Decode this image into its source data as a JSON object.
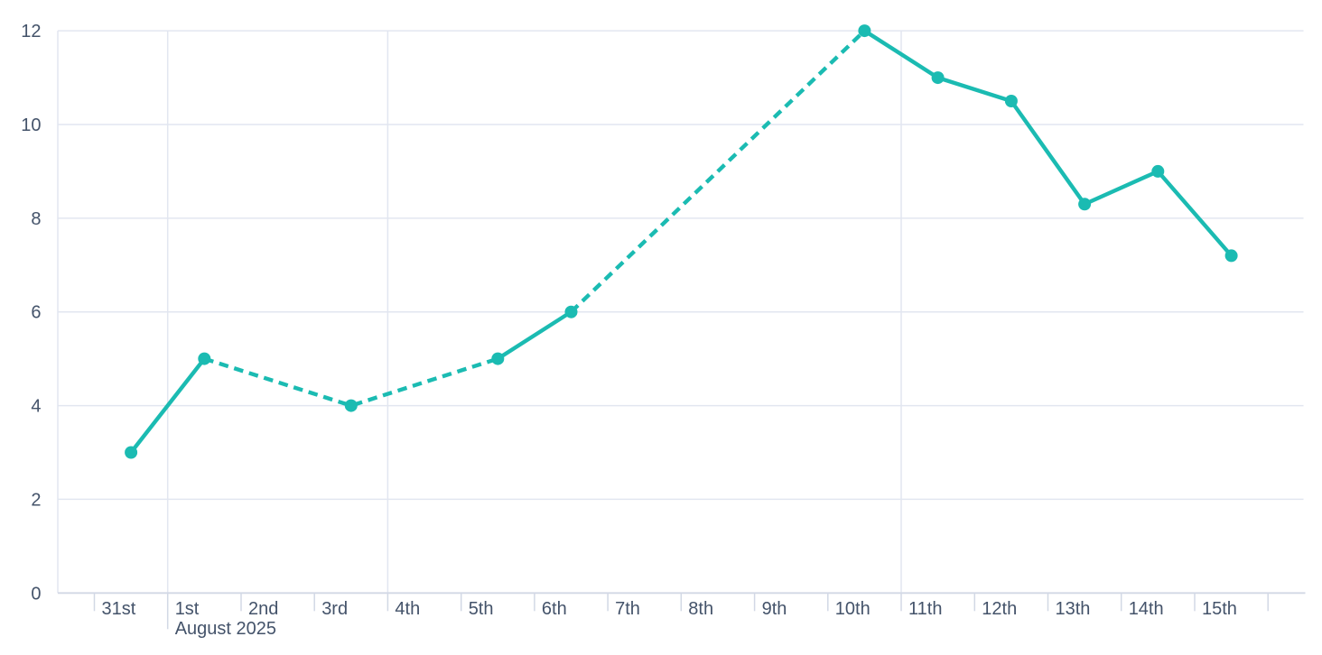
{
  "chart_data": {
    "type": "line",
    "title": "",
    "xlabel": "",
    "ylabel": "",
    "legend": null,
    "categories": [
      "31st",
      "1st",
      "2nd",
      "3rd",
      "4th",
      "5th",
      "6th",
      "7th",
      "8th",
      "9th",
      "10th",
      "11th",
      "12th",
      "13th",
      "14th",
      "15th"
    ],
    "x_secondary_label": "August 2025",
    "x_secondary_label_under": "1st",
    "values": [
      3,
      5,
      null,
      4,
      null,
      5,
      6,
      null,
      null,
      null,
      12,
      11,
      10.5,
      8.3,
      9,
      7.2
    ],
    "missing_data_style": "dashed-bridge-across-null-days",
    "yticks": [
      0,
      2,
      4,
      6,
      8,
      10,
      12
    ],
    "ylim": [
      0,
      12
    ],
    "grid": {
      "horizontal": true,
      "vertical_gridlines_before": [
        "1st",
        "4th",
        "11th"
      ]
    },
    "marker": {
      "shape": "circle",
      "radius": 7
    },
    "colors": {
      "line": "#1BBBB2",
      "grid": "#E2E6F0",
      "axis": "#D2D8E5",
      "label": "#44536A",
      "background": "#FFFFFF"
    }
  }
}
